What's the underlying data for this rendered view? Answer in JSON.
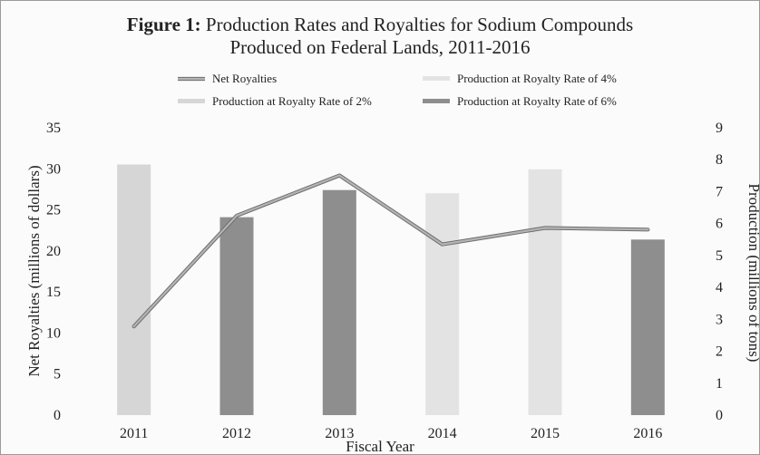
{
  "figure": {
    "label": "Figure 1:",
    "title_line1": "Production Rates and Royalties for Sodium Compounds",
    "title_line2": "Produced on Federal Lands, 2011-2016"
  },
  "colors": {
    "rate_2pct": "#d6d6d6",
    "rate_4pct": "#e3e3e3",
    "rate_6pct": "#8e8e8e",
    "line": "#b4b4b4",
    "line_outline": "#6e6e6e"
  },
  "chart_data": {
    "type": "bar",
    "title": "Figure 1: Production Rates and Royalties for Sodium Compounds Produced on Federal Lands, 2011-2016",
    "xlabel": "Fiscal Year",
    "ylabel_left": "Net Royalties (millions of dollars)",
    "ylabel_right": "Production (millions of tons)",
    "categories": [
      "2011",
      "2012",
      "2013",
      "2014",
      "2015",
      "2016"
    ],
    "left_axis": {
      "min": 0,
      "max": 35,
      "ticks": [
        "0",
        "5",
        "10",
        "15",
        "20",
        "25",
        "30",
        "35"
      ]
    },
    "right_axis": {
      "min": 0,
      "max": 9,
      "ticks": [
        "0",
        "1",
        "2",
        "3",
        "4",
        "5",
        "6",
        "7",
        "8",
        "9"
      ]
    },
    "bars": [
      {
        "category": "2011",
        "production": 7.85,
        "royalty_rate": "2%"
      },
      {
        "category": "2012",
        "production": 6.2,
        "royalty_rate": "6%"
      },
      {
        "category": "2013",
        "production": 7.05,
        "royalty_rate": "6%"
      },
      {
        "category": "2014",
        "production": 6.95,
        "royalty_rate": "4%"
      },
      {
        "category": "2015",
        "production": 7.7,
        "royalty_rate": "4%"
      },
      {
        "category": "2016",
        "production": 5.5,
        "royalty_rate": "6%"
      }
    ],
    "line_series": {
      "name": "Net Royalties",
      "axis": "left",
      "values": [
        10.8,
        24.3,
        29.2,
        20.8,
        22.8,
        22.6
      ]
    },
    "legend": {
      "placement": "top",
      "entries": [
        {
          "name": "Net Royalties",
          "kind": "line"
        },
        {
          "name": "Production at Royalty Rate of 4%",
          "kind": "bar",
          "rate": "4%"
        },
        {
          "name": "Production at Royalty Rate of 2%",
          "kind": "bar",
          "rate": "2%"
        },
        {
          "name": "Production at Royalty Rate of 6%",
          "kind": "bar",
          "rate": "6%"
        }
      ]
    },
    "grid": false
  }
}
